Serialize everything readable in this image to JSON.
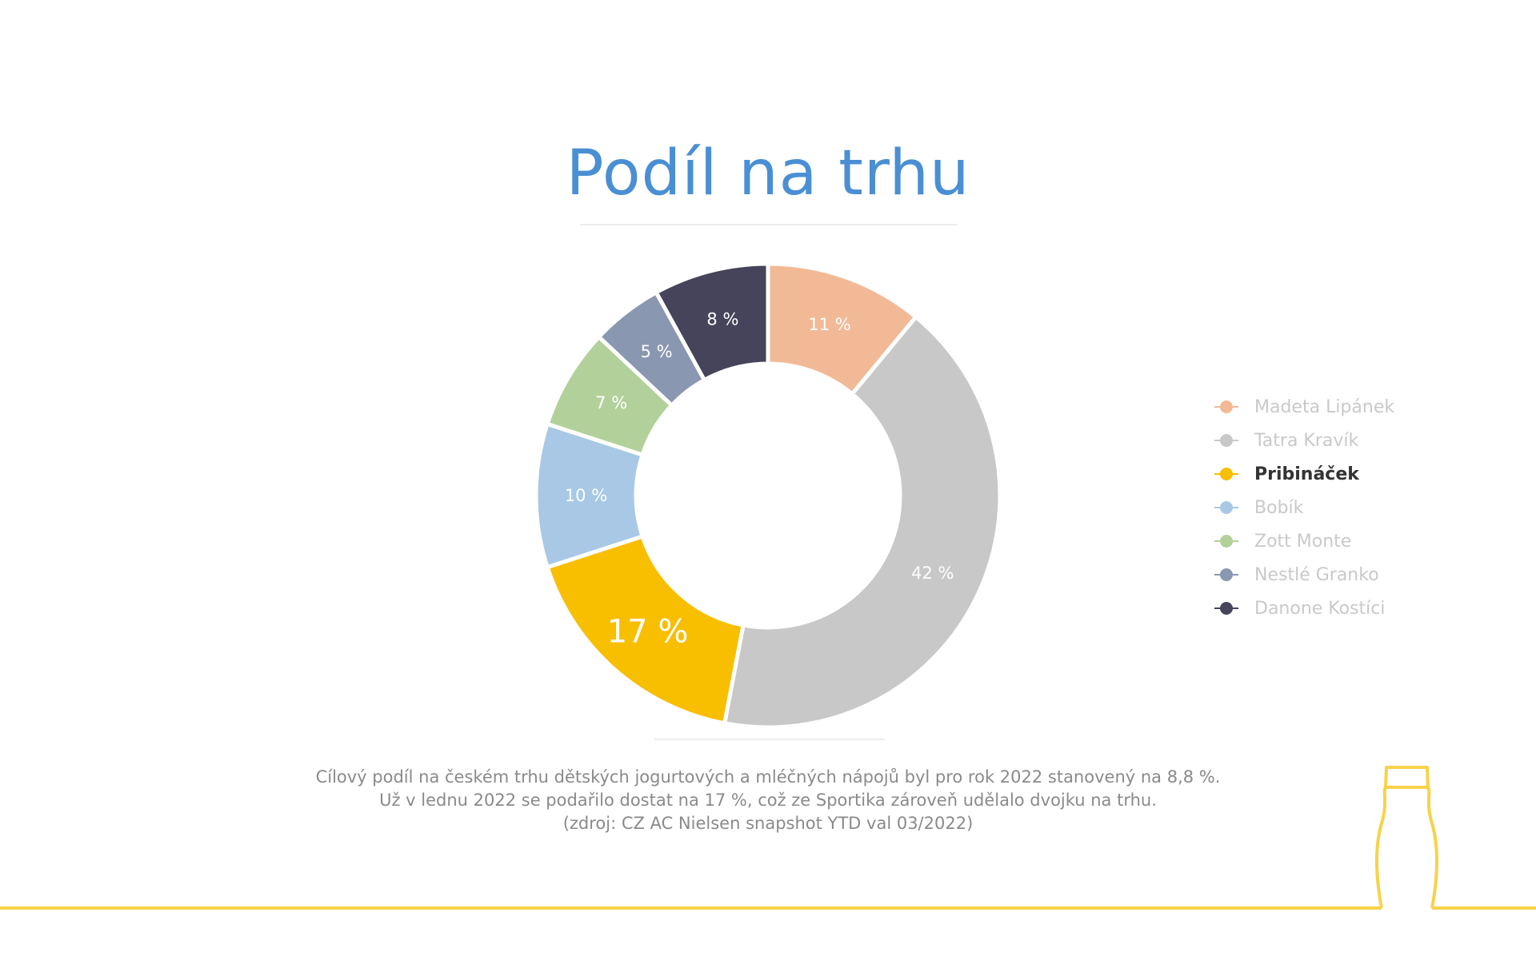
{
  "chart_data": {
    "type": "pie",
    "title": "Podíl na trhu",
    "categories": [
      "Madeta Lipánek",
      "Tatra Kravík",
      "Pribináček",
      "Bobík",
      "Zott Monte",
      "Nestlé Granko",
      "Danone Kostíci"
    ],
    "values": [
      11,
      42,
      17,
      10,
      7,
      5,
      8
    ],
    "labels": [
      "11 %",
      "42 %",
      "17 %",
      "10 %",
      "7 %",
      "5 %",
      "8 %"
    ],
    "colors": [
      "#f2b997",
      "#c8c8c8",
      "#f8be00",
      "#a8c8e6",
      "#b2d19a",
      "#8a97b0",
      "#45445a"
    ],
    "highlight": "Pribináček",
    "legend_position": "right"
  },
  "legend": [
    {
      "label": "Madeta Lipánek",
      "color": "#f2b997"
    },
    {
      "label": "Tatra Kravík",
      "color": "#c8c8c8"
    },
    {
      "label": "Pribináček",
      "color": "#f8be00",
      "highlight": true
    },
    {
      "label": "Bobík",
      "color": "#a8c8e6"
    },
    {
      "label": "Zott Monte",
      "color": "#b2d19a"
    },
    {
      "label": "Nestlé Granko",
      "color": "#8a97b0"
    },
    {
      "label": "Danone Kostíci",
      "color": "#45445a"
    }
  ],
  "footnote": {
    "line1": "Cílový podíl na českém trhu dětských jogurtových a mléčných nápojů byl pro rok 2022 stanovený na 8,8 %.",
    "line2": "Už v lednu 2022 se podařilo dostat na 17 %, což ze Sportika zároveň udělalo dvojku na trhu.",
    "line3": "(zdroj: CZ AC Nielsen snapshot YTD val 03/2022)"
  },
  "colors": {
    "title": "#4a8fd4",
    "accent_line": "#f8d24a"
  }
}
